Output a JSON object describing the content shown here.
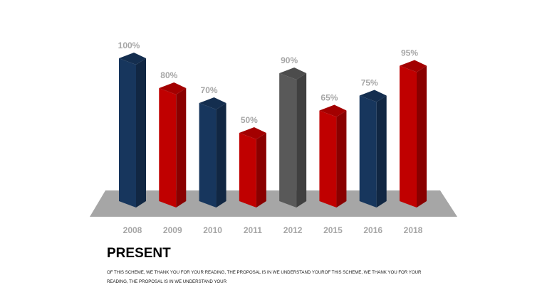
{
  "chart_data": {
    "type": "bar",
    "categories": [
      "2008",
      "2009",
      "2010",
      "2011",
      "2012",
      "2015",
      "2016",
      "2018"
    ],
    "values": [
      100,
      80,
      70,
      50,
      90,
      65,
      75,
      95
    ],
    "value_labels": [
      "100%",
      "80%",
      "70%",
      "50%",
      "90%",
      "65%",
      "75%",
      "95%"
    ],
    "bar_colors": [
      "#17365d",
      "#c00000",
      "#17365d",
      "#c00000",
      "#595959",
      "#c00000",
      "#17365d",
      "#c00000"
    ],
    "ylim": [
      0,
      100
    ],
    "grid": false,
    "legend": "none",
    "style": "3d-column"
  },
  "caption": {
    "title": "PRESENT",
    "body": "OF THIS SCHEME, WE THANK YOU FOR YOUR READING, THE PROPOSAL IS IN WE UNDERSTAND YOUROF THIS SCHEME, WE THANK YOU FOR YOUR READING, THE PROPOSAL IS IN WE UNDERSTAND YOUR"
  }
}
